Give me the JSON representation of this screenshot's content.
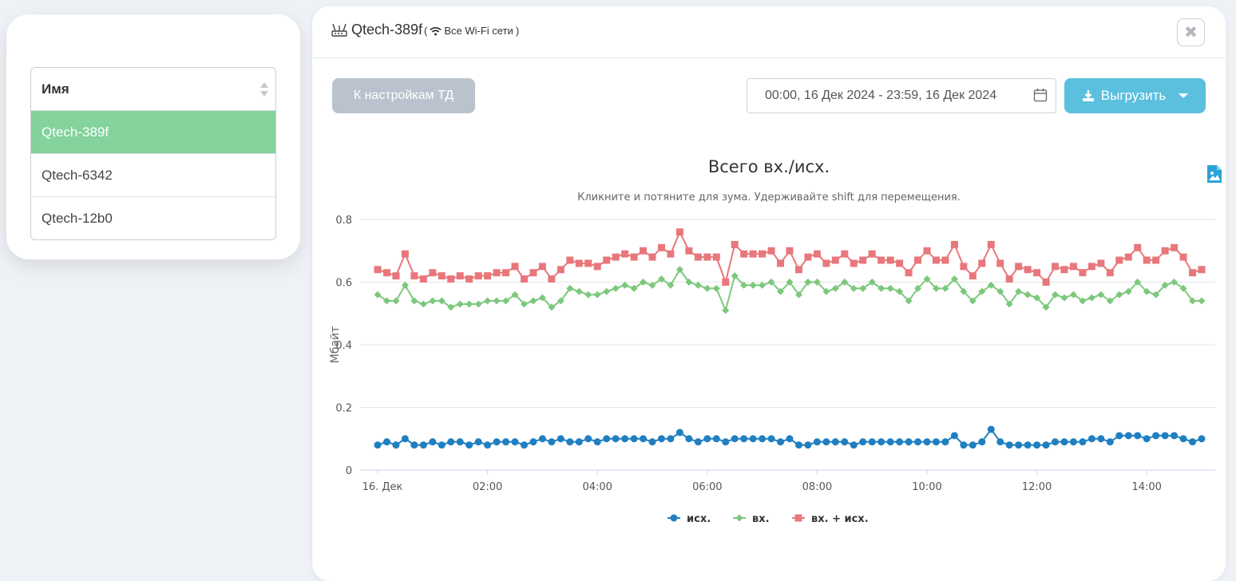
{
  "devices": {
    "header": "Имя",
    "items": [
      {
        "name": "Qtech-389f",
        "active": true
      },
      {
        "name": "Qtech-6342",
        "active": false
      },
      {
        "name": "Qtech-12b0",
        "active": false
      }
    ]
  },
  "panel": {
    "title": "Qtech-389f",
    "subtitle_open": "(",
    "subtitle_text": "Все Wi-Fi сети",
    "subtitle_close": ")",
    "close_symbol": "✖",
    "back_label": "К настройкам ТД",
    "date_range": "00:00, 16 Дек 2024 - 23:59, 16 Дек 2024",
    "export_label": "Выгрузить"
  },
  "colors": {
    "active_row": "#84d29c",
    "export": "#5bc0de",
    "out": "#1f7fc1",
    "in": "#7cc87c",
    "total": "#e8777b"
  },
  "chart_data": {
    "type": "line",
    "title": "Всего вх./исх.",
    "subtitle": "Кликните и потяните для зума. Удерживайте shift для перемещения.",
    "ylabel": "Мбайт",
    "ylim": [
      0,
      0.8
    ],
    "yticks": [
      "0",
      "0.2",
      "0.4",
      "0.6",
      "0.8"
    ],
    "xtick_labels": [
      "16. Дек",
      "02:00",
      "04:00",
      "06:00",
      "08:00",
      "10:00",
      "12:00",
      "14:00"
    ],
    "x_start": "00:00",
    "x_step_minutes": 10,
    "series": [
      {
        "name": "исх.",
        "marker": "circle",
        "values": [
          0.08,
          0.09,
          0.08,
          0.1,
          0.08,
          0.08,
          0.09,
          0.08,
          0.09,
          0.09,
          0.08,
          0.09,
          0.08,
          0.09,
          0.09,
          0.09,
          0.08,
          0.09,
          0.1,
          0.09,
          0.1,
          0.09,
          0.09,
          0.1,
          0.09,
          0.1,
          0.1,
          0.1,
          0.1,
          0.1,
          0.09,
          0.1,
          0.1,
          0.12,
          0.1,
          0.09,
          0.1,
          0.1,
          0.09,
          0.1,
          0.1,
          0.1,
          0.1,
          0.1,
          0.09,
          0.1,
          0.08,
          0.08,
          0.09,
          0.09,
          0.09,
          0.09,
          0.08,
          0.09,
          0.09,
          0.09,
          0.09,
          0.09,
          0.09,
          0.09,
          0.09,
          0.09,
          0.09,
          0.11,
          0.08,
          0.08,
          0.09,
          0.13,
          0.09,
          0.08,
          0.08,
          0.08,
          0.08,
          0.08,
          0.09,
          0.09,
          0.09,
          0.09,
          0.1,
          0.1,
          0.09,
          0.11,
          0.11,
          0.11,
          0.1,
          0.11,
          0.11,
          0.11,
          0.1,
          0.09,
          0.1
        ]
      },
      {
        "name": "вх.",
        "marker": "diamond",
        "values": [
          0.56,
          0.54,
          0.54,
          0.59,
          0.54,
          0.53,
          0.54,
          0.54,
          0.52,
          0.53,
          0.53,
          0.53,
          0.54,
          0.54,
          0.54,
          0.56,
          0.53,
          0.54,
          0.55,
          0.52,
          0.54,
          0.58,
          0.57,
          0.56,
          0.56,
          0.57,
          0.58,
          0.59,
          0.58,
          0.6,
          0.59,
          0.61,
          0.59,
          0.64,
          0.6,
          0.59,
          0.58,
          0.58,
          0.51,
          0.62,
          0.59,
          0.59,
          0.59,
          0.6,
          0.57,
          0.6,
          0.56,
          0.6,
          0.6,
          0.57,
          0.58,
          0.6,
          0.58,
          0.58,
          0.6,
          0.58,
          0.58,
          0.57,
          0.54,
          0.58,
          0.61,
          0.58,
          0.58,
          0.61,
          0.57,
          0.54,
          0.57,
          0.59,
          0.57,
          0.53,
          0.57,
          0.56,
          0.55,
          0.52,
          0.56,
          0.55,
          0.56,
          0.54,
          0.55,
          0.56,
          0.54,
          0.56,
          0.57,
          0.6,
          0.57,
          0.56,
          0.59,
          0.6,
          0.58,
          0.54,
          0.54
        ]
      },
      {
        "name": "вх. + исх.",
        "marker": "square",
        "values": [
          0.64,
          0.63,
          0.62,
          0.69,
          0.62,
          0.61,
          0.63,
          0.62,
          0.61,
          0.62,
          0.61,
          0.62,
          0.62,
          0.63,
          0.63,
          0.65,
          0.61,
          0.63,
          0.65,
          0.61,
          0.64,
          0.67,
          0.66,
          0.66,
          0.65,
          0.67,
          0.68,
          0.69,
          0.68,
          0.7,
          0.68,
          0.71,
          0.69,
          0.76,
          0.7,
          0.68,
          0.68,
          0.68,
          0.6,
          0.72,
          0.69,
          0.69,
          0.69,
          0.7,
          0.66,
          0.7,
          0.64,
          0.68,
          0.69,
          0.66,
          0.67,
          0.69,
          0.66,
          0.67,
          0.69,
          0.67,
          0.67,
          0.66,
          0.63,
          0.67,
          0.7,
          0.67,
          0.67,
          0.72,
          0.65,
          0.62,
          0.66,
          0.72,
          0.66,
          0.61,
          0.65,
          0.64,
          0.63,
          0.6,
          0.65,
          0.64,
          0.65,
          0.63,
          0.65,
          0.66,
          0.63,
          0.67,
          0.68,
          0.71,
          0.67,
          0.67,
          0.7,
          0.71,
          0.68,
          0.63,
          0.64
        ]
      }
    ],
    "legend_position": "bottom-center",
    "grid": true
  }
}
